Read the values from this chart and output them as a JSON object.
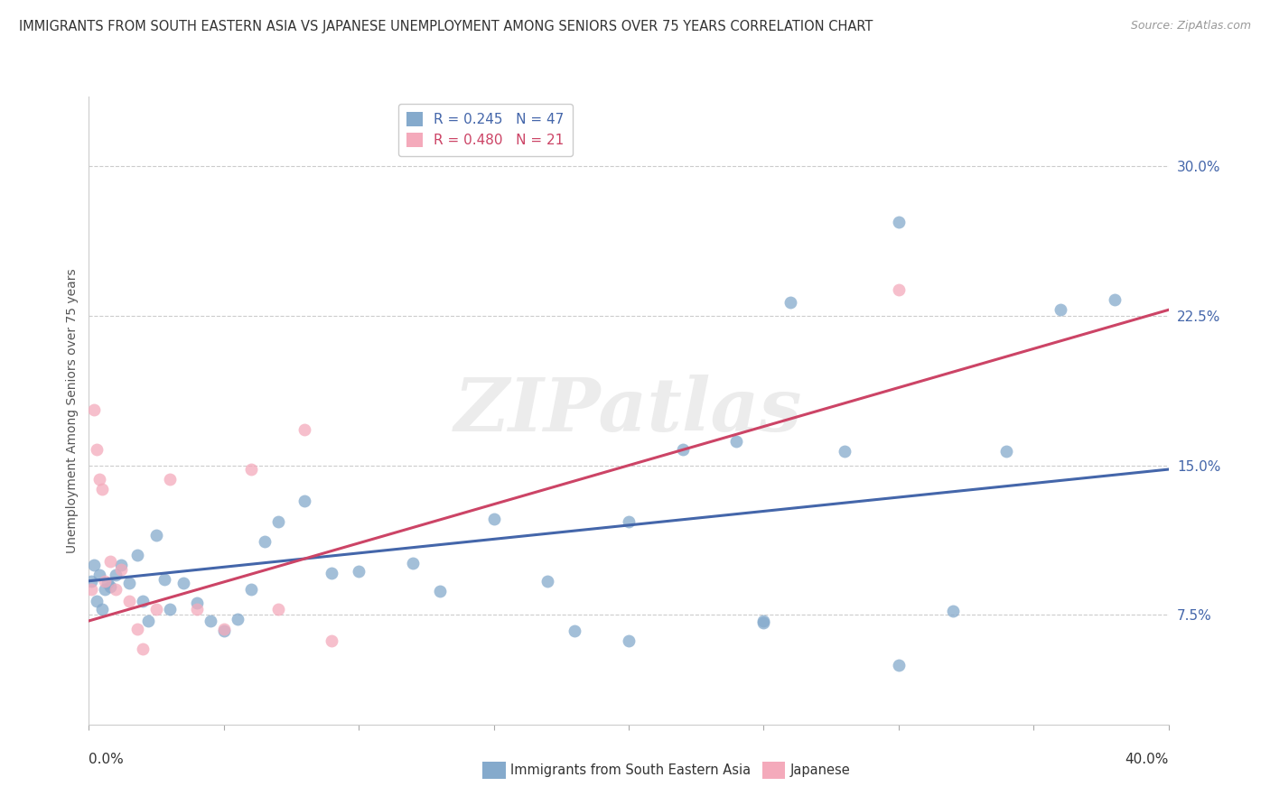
{
  "title": "IMMIGRANTS FROM SOUTH EASTERN ASIA VS JAPANESE UNEMPLOYMENT AMONG SENIORS OVER 75 YEARS CORRELATION CHART",
  "source": "Source: ZipAtlas.com",
  "ylabel": "Unemployment Among Seniors over 75 years",
  "ytick_values": [
    0.075,
    0.15,
    0.225,
    0.3
  ],
  "ytick_labels": [
    "7.5%",
    "15.0%",
    "22.5%",
    "30.0%"
  ],
  "xlim": [
    0.0,
    0.4
  ],
  "ylim": [
    0.02,
    0.335
  ],
  "legend_blue_r": "0.245",
  "legend_blue_n": "47",
  "legend_pink_r": "0.480",
  "legend_pink_n": "21",
  "blue_color": "#85AACC",
  "pink_color": "#F4AABB",
  "blue_line_color": "#4466AA",
  "pink_line_color": "#CC4466",
  "watermark": "ZIPatlas",
  "blue_scatter_x": [
    0.001,
    0.002,
    0.003,
    0.004,
    0.005,
    0.006,
    0.007,
    0.008,
    0.01,
    0.012,
    0.015,
    0.018,
    0.02,
    0.022,
    0.025,
    0.028,
    0.03,
    0.035,
    0.04,
    0.045,
    0.05,
    0.055,
    0.06,
    0.065,
    0.07,
    0.08,
    0.09,
    0.1,
    0.12,
    0.13,
    0.15,
    0.17,
    0.18,
    0.2,
    0.22,
    0.24,
    0.25,
    0.26,
    0.28,
    0.3,
    0.32,
    0.34,
    0.36,
    0.38,
    0.2,
    0.25,
    0.3
  ],
  "blue_scatter_y": [
    0.092,
    0.1,
    0.082,
    0.095,
    0.078,
    0.088,
    0.091,
    0.089,
    0.095,
    0.1,
    0.091,
    0.105,
    0.082,
    0.072,
    0.115,
    0.093,
    0.078,
    0.091,
    0.081,
    0.072,
    0.067,
    0.073,
    0.088,
    0.112,
    0.122,
    0.132,
    0.096,
    0.097,
    0.101,
    0.087,
    0.123,
    0.092,
    0.067,
    0.122,
    0.158,
    0.162,
    0.071,
    0.232,
    0.157,
    0.272,
    0.077,
    0.157,
    0.228,
    0.233,
    0.062,
    0.072,
    0.05
  ],
  "pink_scatter_x": [
    0.001,
    0.002,
    0.003,
    0.004,
    0.005,
    0.006,
    0.008,
    0.01,
    0.012,
    0.015,
    0.018,
    0.02,
    0.025,
    0.03,
    0.04,
    0.05,
    0.06,
    0.07,
    0.08,
    0.09,
    0.3
  ],
  "pink_scatter_y": [
    0.088,
    0.178,
    0.158,
    0.143,
    0.138,
    0.092,
    0.102,
    0.088,
    0.098,
    0.082,
    0.068,
    0.058,
    0.078,
    0.143,
    0.078,
    0.068,
    0.148,
    0.078,
    0.168,
    0.062,
    0.238
  ],
  "blue_line_x": [
    0.0,
    0.4
  ],
  "blue_line_y": [
    0.092,
    0.148
  ],
  "pink_line_x": [
    0.0,
    0.4
  ],
  "pink_line_y": [
    0.072,
    0.228
  ]
}
